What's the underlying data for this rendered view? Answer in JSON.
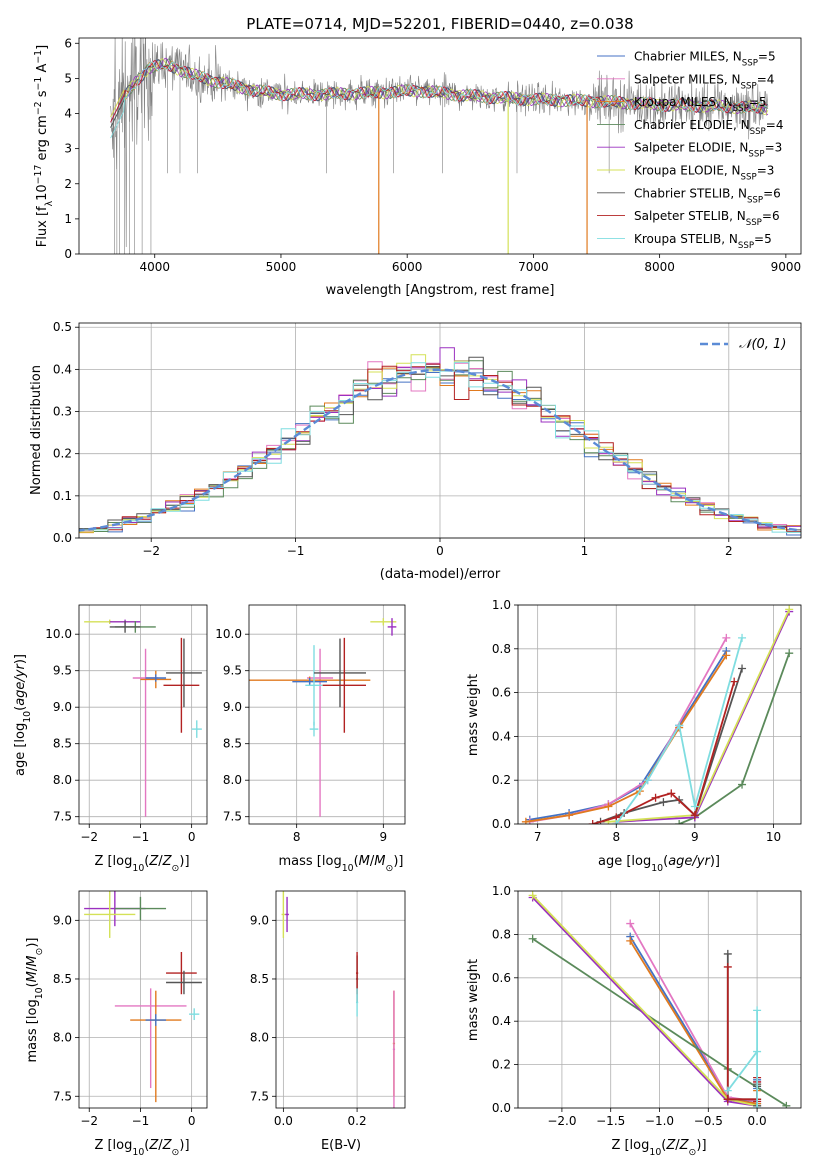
{
  "figure_title": "PLATE=0714, MJD=52201, FIBERID=0440, z=0.038",
  "model_colors": {
    "Chabrier MILES": "#4472c4",
    "Salpeter MILES": "#e377c2",
    "Kroupa MILES": "#e07a1f",
    "Chabrier ELODIE": "#5b8a5b",
    "Salpeter ELODIE": "#9b30c0",
    "Kroupa ELODIE": "#d4e157",
    "Chabrier STELIB": "#555555",
    "Salpeter STELIB": "#b22222",
    "Kroupa STELIB": "#7fdde0"
  },
  "chart_data": [
    {
      "id": "spectrum",
      "type": "line",
      "xlabel": "wavelength [Angstrom, rest frame]",
      "ylabel_parts": [
        "Flux [f",
        "λ",
        "10",
        "−17",
        " erg cm",
        "−2",
        " s",
        "−1",
        " A",
        "−1",
        "]"
      ],
      "xlim": [
        3400,
        9120
      ],
      "ylim": [
        0,
        6.15
      ],
      "xticks": [
        4000,
        5000,
        6000,
        7000,
        8000,
        9000
      ],
      "yticks": [
        0,
        1,
        2,
        3,
        4,
        5,
        6
      ],
      "legend_position": "top-right",
      "legend": [
        {
          "name": "Chabrier MILES",
          "nssp": "5"
        },
        {
          "name": "Salpeter MILES",
          "nssp": "4"
        },
        {
          "name": "Kroupa MILES",
          "nssp": "5"
        },
        {
          "name": "Chabrier ELODIE",
          "nssp": "4"
        },
        {
          "name": "Salpeter ELODIE",
          "nssp": "3"
        },
        {
          "name": "Kroupa ELODIE",
          "nssp": "3"
        },
        {
          "name": "Chabrier STELIB",
          "nssp": "6"
        },
        {
          "name": "Salpeter STELIB",
          "nssp": "6"
        },
        {
          "name": "Kroupa STELIB",
          "nssp": "5"
        }
      ],
      "data_color": "#808080",
      "continuum": [
        [
          3650,
          3.3
        ],
        [
          3750,
          4.4
        ],
        [
          3850,
          4.9
        ],
        [
          3950,
          5.3
        ],
        [
          4100,
          5.4
        ],
        [
          4300,
          5.1
        ],
        [
          4500,
          4.9
        ],
        [
          4800,
          4.65
        ],
        [
          5000,
          4.55
        ],
        [
          5400,
          4.55
        ],
        [
          5800,
          4.6
        ],
        [
          6100,
          4.65
        ],
        [
          6500,
          4.5
        ],
        [
          7000,
          4.4
        ],
        [
          7500,
          4.35
        ],
        [
          8000,
          4.25
        ],
        [
          8500,
          4.2
        ],
        [
          8850,
          4.15
        ]
      ],
      "model_drops": [
        {
          "model": "Kroupa MILES",
          "x": 5775
        },
        {
          "model": "Kroupa ELODIE",
          "x": 6800
        },
        {
          "model": "Kroupa MILES",
          "x": 7425
        }
      ],
      "data_spikes_x": [
        3680,
        3700,
        3720,
        3760,
        3800,
        3840,
        3900,
        3970,
        4100,
        4200,
        4340,
        5360,
        5890,
        6280,
        6870,
        7600
      ]
    },
    {
      "id": "residuals",
      "type": "histogram",
      "xlabel": "(data-model)/error",
      "ylabel": "Normed distribution",
      "xlim": [
        -2.5,
        2.5
      ],
      "ylim": [
        0,
        0.51
      ],
      "xticks": [
        -2,
        -1,
        0,
        1,
        2
      ],
      "xtick_labels": [
        "−2",
        "−1",
        "0",
        "1",
        "2"
      ],
      "yticks": [
        0.0,
        0.1,
        0.2,
        0.3,
        0.4,
        0.5
      ],
      "ytick_labels": [
        "0.0",
        "0.1",
        "0.2",
        "0.3",
        "0.4",
        "0.5"
      ],
      "legend": "𝒩(0, 1)",
      "legend_position": "top-right",
      "bin_width": 0.1,
      "normal_curve": {
        "mean": 0,
        "sigma": 1,
        "color": "#5b8bd6"
      }
    },
    {
      "id": "age_vs_Z",
      "type": "scatter",
      "xlabel": "Z [log10(Z/Z⊙)]",
      "ylabel": "age  [log10(age/yr)]",
      "xlim": [
        -2.2,
        0.3
      ],
      "ylim": [
        7.4,
        10.4
      ],
      "xticks": [
        -2,
        -1,
        0
      ],
      "xtick_labels": [
        "−2",
        "−1",
        "0"
      ],
      "yticks": [
        7.5,
        8.0,
        8.5,
        9.0,
        9.5,
        10.0
      ],
      "ytick_labels": [
        "7.5",
        "8.0",
        "8.5",
        "9.0",
        "9.5",
        "10.0"
      ],
      "points": [
        {
          "model": "Kroupa ELODIE",
          "x": -1.6,
          "y": 10.17,
          "xerr": 0.5,
          "yerr": 0.03
        },
        {
          "model": "Salpeter ELODIE",
          "x": -1.3,
          "y": 10.17,
          "xerr": 0.3,
          "yerr": 0.03
        },
        {
          "model": "Chabrier ELODIE",
          "x": -1.1,
          "y": 10.1,
          "xerr": 0.4,
          "yerr": 0.08
        },
        {
          "model": "Chabrier STELIB",
          "x": -1.3,
          "y": 10.1,
          "xerr": 0.3,
          "yerr": 0.08
        },
        {
          "model": "Salpeter MILES",
          "x": -0.9,
          "y": 9.4,
          "xerr": 0.25,
          "yerr": 0.4,
          "yerr_lo": 1.9
        },
        {
          "model": "Kroupa MILES",
          "x": -0.7,
          "y": 9.38,
          "xerr": 0.3,
          "yerr": 0.12
        },
        {
          "model": "Chabrier MILES",
          "x": -0.7,
          "y": 9.4,
          "xerr": 0.2,
          "yerr": 0.05
        },
        {
          "model": "Salpeter STELIB",
          "x": -0.2,
          "y": 9.3,
          "xerr": 0.35,
          "yerr": 0.65
        },
        {
          "model": "Chabrier STELIB",
          "x": -0.15,
          "y": 9.47,
          "xerr": 0.35,
          "yerr": 0.47
        },
        {
          "model": "Kroupa STELIB",
          "x": 0.1,
          "y": 8.7,
          "xerr": 0.1,
          "yerr": 0.12
        }
      ]
    },
    {
      "id": "age_vs_mass",
      "type": "scatter",
      "xlabel": "mass [log10(M/M⊙)]",
      "ylabel": "",
      "xlim": [
        7.45,
        9.25
      ],
      "ylim": [
        7.4,
        10.4
      ],
      "xticks": [
        8,
        9
      ],
      "xtick_labels": [
        "8",
        "9"
      ],
      "yticks": [
        7.5,
        8.0,
        8.5,
        9.0,
        9.5,
        10.0
      ],
      "ytick_labels": [
        "7.5",
        "8.0",
        "8.5",
        "9.0",
        "9.5",
        "10.0"
      ],
      "points": [
        {
          "model": "Kroupa ELODIE",
          "x": 9.0,
          "y": 10.17,
          "xerr": 0.15,
          "yerr": 0.05
        },
        {
          "model": "Salpeter ELODIE",
          "x": 9.1,
          "y": 10.1,
          "xerr": 0.05,
          "yerr": 0.12
        },
        {
          "model": "Salpeter MILES",
          "x": 8.27,
          "y": 9.4,
          "xerr": 0.15,
          "yerr": 0.4,
          "yerr_lo": 1.9
        },
        {
          "model": "Kroupa MILES",
          "x": 8.15,
          "y": 9.37,
          "xerr": 0.7,
          "yerr": 0.05
        },
        {
          "model": "Chabrier MILES",
          "x": 8.15,
          "y": 9.35,
          "xerr": 0.2,
          "yerr": 0.05
        },
        {
          "model": "Kroupa STELIB",
          "x": 8.2,
          "y": 9.3,
          "xerr": 0.1,
          "yerr": 0.55
        },
        {
          "model": "Chabrier STELIB",
          "x": 8.5,
          "y": 9.47,
          "xerr": 0.3,
          "yerr": 0.47
        },
        {
          "model": "Salpeter STELIB",
          "x": 8.55,
          "y": 9.3,
          "xerr": 0.25,
          "yerr": 0.65
        },
        {
          "model": "Kroupa STELIB",
          "x": 8.2,
          "y": 8.7,
          "xerr": 0.05,
          "yerr": 0.1
        }
      ]
    },
    {
      "id": "mass_weight_vs_age",
      "type": "line",
      "xlabel": "age  [log10(age/yr)]",
      "ylabel": "mass weight",
      "xlim": [
        6.75,
        10.35
      ],
      "ylim": [
        0,
        1.0
      ],
      "xticks": [
        7,
        8,
        9,
        10
      ],
      "xtick_labels": [
        "7",
        "8",
        "9",
        "10"
      ],
      "yticks": [
        0.0,
        0.2,
        0.4,
        0.6,
        0.8,
        1.0
      ],
      "ytick_labels": [
        "0.0",
        "0.2",
        "0.4",
        "0.6",
        "0.8",
        "1.0"
      ],
      "series": [
        {
          "name": "Chabrier MILES",
          "x": [
            6.9,
            7.4,
            7.9,
            8.3,
            8.8,
            9.4
          ],
          "y": [
            0.02,
            0.05,
            0.09,
            0.17,
            0.45,
            0.79
          ]
        },
        {
          "name": "Salpeter MILES",
          "x": [
            6.9,
            7.4,
            7.9,
            8.4,
            9.4
          ],
          "y": [
            0.01,
            0.04,
            0.09,
            0.2,
            0.85
          ]
        },
        {
          "name": "Kroupa MILES",
          "x": [
            6.85,
            7.4,
            7.9,
            8.3,
            8.8,
            9.4
          ],
          "y": [
            0.01,
            0.04,
            0.08,
            0.15,
            0.44,
            0.77
          ]
        },
        {
          "name": "Chabrier ELODIE",
          "x": [
            8.8,
            9.0,
            9.6,
            10.2
          ],
          "y": [
            0.0,
            0.03,
            0.18,
            0.78
          ]
        },
        {
          "name": "Salpeter ELODIE",
          "x": [
            8.0,
            9.0,
            10.2
          ],
          "y": [
            0.01,
            0.03,
            0.97
          ]
        },
        {
          "name": "Kroupa ELODIE",
          "x": [
            7.9,
            9.0,
            10.2
          ],
          "y": [
            0.01,
            0.04,
            0.98
          ]
        },
        {
          "name": "Chabrier STELIB",
          "x": [
            7.8,
            8.1,
            8.6,
            8.8,
            9.0,
            9.6
          ],
          "y": [
            0.01,
            0.05,
            0.1,
            0.11,
            0.04,
            0.71
          ]
        },
        {
          "name": "Salpeter STELIB",
          "x": [
            7.7,
            8.0,
            8.5,
            8.7,
            9.0,
            9.5
          ],
          "y": [
            0.0,
            0.03,
            0.12,
            0.14,
            0.04,
            0.65
          ]
        },
        {
          "name": "Kroupa STELIB",
          "x": [
            8.0,
            8.4,
            8.8,
            9.0,
            9.6
          ],
          "y": [
            0.0,
            0.2,
            0.45,
            0.08,
            0.85
          ]
        }
      ]
    },
    {
      "id": "mass_vs_Z",
      "type": "scatter",
      "xlabel": "Z [log10(Z/Z⊙)]",
      "ylabel": "mass [log10(M/M⊙)]",
      "xlim": [
        -2.2,
        0.3
      ],
      "ylim": [
        7.4,
        9.25
      ],
      "xticks": [
        -2,
        -1,
        0
      ],
      "xtick_labels": [
        "−2",
        "−1",
        "0"
      ],
      "yticks": [
        7.5,
        8.0,
        8.5,
        9.0
      ],
      "ytick_labels": [
        "7.5",
        "8.0",
        "8.5",
        "9.0"
      ],
      "points": [
        {
          "model": "Salpeter ELODIE",
          "x": -1.5,
          "y": 9.1,
          "xerr": 0.6,
          "yerr": 0.15
        },
        {
          "model": "Chabrier ELODIE",
          "x": -1.0,
          "y": 9.1,
          "xerr": 0.5,
          "yerr": 0.1
        },
        {
          "model": "Kroupa ELODIE",
          "x": -1.6,
          "y": 9.05,
          "xerr": 0.5,
          "yerr": 0.2
        },
        {
          "model": "Salpeter MILES",
          "x": -0.8,
          "y": 8.27,
          "xerr": 0.7,
          "yerr": 0.15,
          "yerr_lo": 0.7
        },
        {
          "model": "Kroupa MILES",
          "x": -0.7,
          "y": 8.15,
          "xerr": 0.5,
          "yerr": 0.25,
          "yerr_lo": 0.7
        },
        {
          "model": "Chabrier MILES",
          "x": -0.7,
          "y": 8.15,
          "xerr": 0.2,
          "yerr": 0.05
        },
        {
          "model": "Salpeter STELIB",
          "x": -0.2,
          "y": 8.55,
          "xerr": 0.3,
          "yerr": 0.18
        },
        {
          "model": "Chabrier STELIB",
          "x": -0.15,
          "y": 8.47,
          "xerr": 0.35,
          "yerr": 0.1
        },
        {
          "model": "Kroupa STELIB",
          "x": 0.05,
          "y": 8.2,
          "xerr": 0.1,
          "yerr": 0.05
        }
      ]
    },
    {
      "id": "mass_vs_ebv",
      "type": "scatter",
      "xlabel": "E(B-V)",
      "ylabel": "",
      "xlim": [
        -0.02,
        0.33
      ],
      "ylim": [
        7.4,
        9.25
      ],
      "xticks": [
        0.0,
        0.2
      ],
      "xtick_labels": [
        "0.0",
        "0.2"
      ],
      "yticks": [
        7.5,
        8.0,
        8.5,
        9.0
      ],
      "ytick_labels": [
        "7.5",
        "8.0",
        "8.5",
        "9.0"
      ],
      "points": [
        {
          "model": "Kroupa ELODIE",
          "x": 0.0,
          "y": 9.05,
          "xerr": 0.005,
          "yerr": 0.2
        },
        {
          "model": "Salpeter ELODIE",
          "x": 0.01,
          "y": 9.05,
          "xerr": 0.005,
          "yerr": 0.15
        },
        {
          "model": "Chabrier STELIB",
          "x": 0.2,
          "y": 8.5,
          "xerr": 0.003,
          "yerr": 0.2
        },
        {
          "model": "Salpeter STELIB",
          "x": 0.2,
          "y": 8.55,
          "xerr": 0.003,
          "yerr": 0.18
        },
        {
          "model": "Kroupa STELIB",
          "x": 0.2,
          "y": 8.3,
          "xerr": 0.003,
          "yerr": 0.12
        },
        {
          "model": "Kroupa MILES",
          "x": 0.3,
          "y": 7.95,
          "xerr": 0.003,
          "yerr": 0.45
        },
        {
          "model": "Salpeter MILES",
          "x": 0.3,
          "y": 7.9,
          "xerr": 0.003,
          "yerr": 0.5
        }
      ]
    },
    {
      "id": "mass_weight_vs_Z",
      "type": "line",
      "xlabel": "Z [log10(Z/Z⊙)]",
      "ylabel": "mass weight",
      "xlim": [
        -2.45,
        0.45
      ],
      "ylim": [
        0,
        1.0
      ],
      "xticks": [
        -2.0,
        -1.5,
        -1.0,
        -0.5,
        0.0
      ],
      "xtick_labels": [
        "−2.0",
        "−1.5",
        "−1.0",
        "−0.5",
        "0.0"
      ],
      "yticks": [
        0.0,
        0.2,
        0.4,
        0.6,
        0.8,
        1.0
      ],
      "ytick_labels": [
        "0.0",
        "0.2",
        "0.4",
        "0.6",
        "0.8",
        "1.0"
      ],
      "series": [
        {
          "name": "Chabrier MILES",
          "x": [
            -1.3,
            -0.3,
            0.0,
            0.0,
            0.0
          ],
          "y": [
            0.79,
            0.05,
            0.02,
            0.09,
            0.13
          ]
        },
        {
          "name": "Salpeter MILES",
          "x": [
            -1.3,
            -0.3,
            0.0,
            0.0
          ],
          "y": [
            0.85,
            0.05,
            0.03,
            0.12
          ]
        },
        {
          "name": "Kroupa MILES",
          "x": [
            -1.3,
            -0.3,
            0.0,
            0.0,
            0.0
          ],
          "y": [
            0.77,
            0.04,
            0.02,
            0.08,
            0.11
          ]
        },
        {
          "name": "Chabrier ELODIE",
          "x": [
            -2.3,
            -0.3,
            0.3
          ],
          "y": [
            0.78,
            0.18,
            0.01
          ]
        },
        {
          "name": "Salpeter ELODIE",
          "x": [
            -2.3,
            -0.3,
            0.0
          ],
          "y": [
            0.97,
            0.03,
            0.01
          ]
        },
        {
          "name": "Kroupa ELODIE",
          "x": [
            -2.3,
            -0.3,
            0.0
          ],
          "y": [
            0.98,
            0.04,
            0.01
          ]
        },
        {
          "name": "Chabrier STELIB",
          "x": [
            -0.3,
            -0.3,
            0.0,
            0.0,
            0.0,
            0.0
          ],
          "y": [
            0.71,
            0.04,
            0.04,
            0.11,
            0.1,
            0.01
          ]
        },
        {
          "name": "Salpeter STELIB",
          "x": [
            -0.3,
            -0.3,
            0.0,
            0.0,
            0.0,
            0.0
          ],
          "y": [
            0.65,
            0.04,
            0.04,
            0.14,
            0.12,
            0.03
          ]
        },
        {
          "name": "Kroupa STELIB",
          "x": [
            -0.3,
            0.0,
            0.0,
            0.0
          ],
          "y": [
            0.08,
            0.26,
            0.45,
            0.0
          ]
        }
      ]
    }
  ]
}
